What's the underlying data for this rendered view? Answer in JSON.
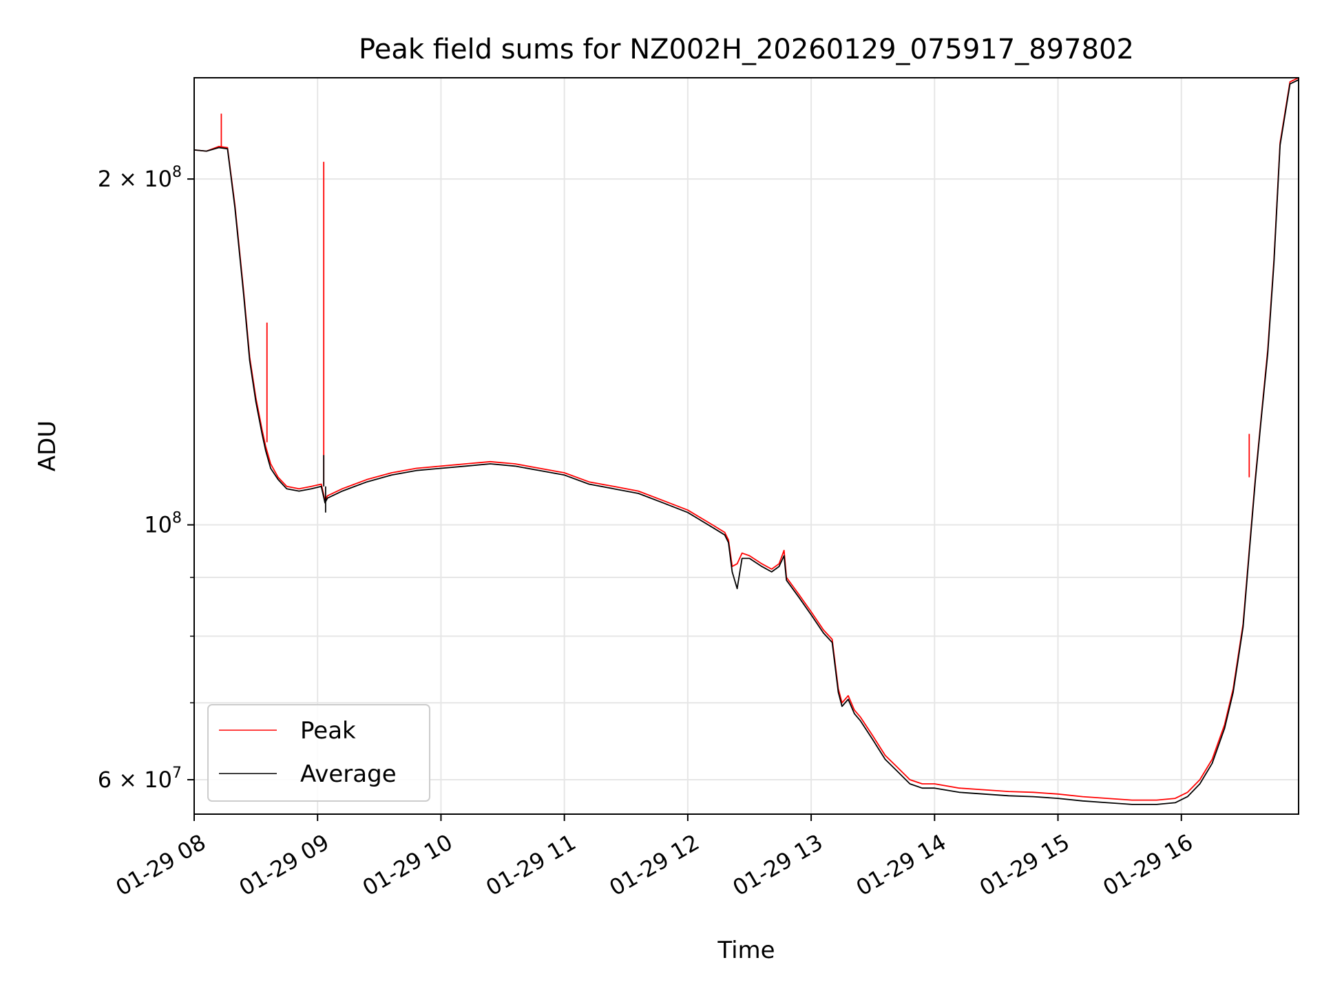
{
  "chart_data": {
    "type": "line",
    "title": "Peak field sums for NZ002H_20260129_075917_897802",
    "xlabel": "Time",
    "ylabel": "ADU",
    "y_scale": "log",
    "xlim": [
      8.0,
      16.95
    ],
    "ylim": [
      56000000.0,
      245000000.0
    ],
    "grid": true,
    "legend_position": "lower-left",
    "x_ticks": [
      {
        "value": 8,
        "label": "01-29 08"
      },
      {
        "value": 9,
        "label": "01-29 09"
      },
      {
        "value": 10,
        "label": "01-29 10"
      },
      {
        "value": 11,
        "label": "01-29 11"
      },
      {
        "value": 12,
        "label": "01-29 12"
      },
      {
        "value": 13,
        "label": "01-29 13"
      },
      {
        "value": 14,
        "label": "01-29 14"
      },
      {
        "value": 15,
        "label": "01-29 15"
      },
      {
        "value": 16,
        "label": "01-29 16"
      }
    ],
    "y_major_ticks": [
      {
        "value": 60000000,
        "base": "6",
        "label": "6 × 10",
        "exp": "7"
      },
      {
        "value": 100000000,
        "base": "",
        "label": "10",
        "exp": "8"
      },
      {
        "value": 200000000,
        "base": "2",
        "label": "2 × 10",
        "exp": "8"
      }
    ],
    "y_minor_ticks": [
      70000000,
      80000000,
      90000000
    ],
    "x": [
      8.0,
      8.1,
      8.2,
      8.27,
      8.33,
      8.4,
      8.45,
      8.5,
      8.55,
      8.58,
      8.62,
      8.68,
      8.75,
      8.85,
      8.95,
      9.03,
      9.06,
      9.08,
      9.2,
      9.4,
      9.6,
      9.8,
      10.0,
      10.2,
      10.4,
      10.6,
      10.8,
      11.0,
      11.2,
      11.4,
      11.6,
      11.8,
      12.0,
      12.2,
      12.3,
      12.33,
      12.36,
      12.4,
      12.44,
      12.5,
      12.6,
      12.68,
      12.74,
      12.78,
      12.8,
      12.9,
      13.0,
      13.1,
      13.17,
      13.22,
      13.25,
      13.3,
      13.35,
      13.4,
      13.5,
      13.6,
      13.7,
      13.8,
      13.9,
      14.0,
      14.2,
      14.4,
      14.6,
      14.8,
      15.0,
      15.2,
      15.4,
      15.6,
      15.8,
      15.95,
      16.05,
      16.15,
      16.25,
      16.35,
      16.42,
      16.5,
      16.55,
      16.6,
      16.65,
      16.7,
      16.75,
      16.8,
      16.88,
      16.95
    ],
    "series": [
      {
        "name": "Peak",
        "color": "#ff0000",
        "values": [
          212000000,
          211500000,
          213500000,
          213000000,
          190000000,
          160000000,
          140000000,
          129000000,
          121000000,
          117000000,
          113000000,
          110000000,
          108000000,
          107500000,
          108000000,
          108500000,
          105000000,
          106000000,
          107500000,
          109500000,
          111000000,
          112000000,
          112500000,
          113000000,
          113500000,
          113000000,
          112000000,
          111000000,
          109000000,
          108000000,
          107000000,
          105000000,
          103000000,
          100000000,
          98500000,
          97000000,
          92000000,
          92500000,
          94500000,
          94000000,
          92500000,
          91500000,
          92500000,
          95000000,
          90000000,
          87000000,
          84000000,
          81000000,
          79500000,
          72000000,
          70000000,
          71000000,
          69000000,
          68000000,
          65500000,
          63000000,
          61500000,
          60000000,
          59500000,
          59500000,
          59000000,
          58800000,
          58600000,
          58500000,
          58300000,
          58000000,
          57800000,
          57600000,
          57600000,
          57800000,
          58500000,
          60000000,
          62500000,
          67000000,
          72000000,
          82000000,
          95000000,
          110000000,
          125000000,
          142000000,
          170000000,
          215000000,
          243000000,
          245000000
        ]
      },
      {
        "name": "Average",
        "color": "#000000",
        "values": [
          212000000,
          211500000,
          213000000,
          212500000,
          189000000,
          159000000,
          139000000,
          128000000,
          120000000,
          116000000,
          112000000,
          109500000,
          107500000,
          107000000,
          107500000,
          108000000,
          104500000,
          105500000,
          107000000,
          109000000,
          110500000,
          111500000,
          112000000,
          112500000,
          113000000,
          112500000,
          111500000,
          110500000,
          108500000,
          107500000,
          106500000,
          104500000,
          102500000,
          99500000,
          98000000,
          96500000,
          91000000,
          88000000,
          93500000,
          93500000,
          92000000,
          91000000,
          92000000,
          94000000,
          89500000,
          86500000,
          83500000,
          80500000,
          79000000,
          71500000,
          69500000,
          70500000,
          68500000,
          67500000,
          65000000,
          62500000,
          61000000,
          59500000,
          59000000,
          59000000,
          58500000,
          58300000,
          58100000,
          58000000,
          57800000,
          57500000,
          57300000,
          57100000,
          57100000,
          57300000,
          58000000,
          59500000,
          62000000,
          66500000,
          71500000,
          81500000,
          94500000,
          109500000,
          124500000,
          141000000,
          169000000,
          214000000,
          242000000,
          244000000
        ]
      }
    ],
    "spikes": [
      {
        "series": "Peak",
        "x": 8.22,
        "base": 213500000,
        "top": 228000000
      },
      {
        "series": "Peak",
        "x": 8.59,
        "base": 118000000,
        "top": 150000000
      },
      {
        "series": "Peak",
        "x": 9.05,
        "base": 108500000,
        "top": 207000000
      },
      {
        "series": "Average",
        "x": 9.05,
        "base": 108000000,
        "top": 115000000
      },
      {
        "series": "Average",
        "x": 9.065,
        "base": 108000000,
        "top": 102500000
      },
      {
        "series": "Peak",
        "x": 16.55,
        "base": 110000000,
        "top": 120000000
      }
    ]
  }
}
